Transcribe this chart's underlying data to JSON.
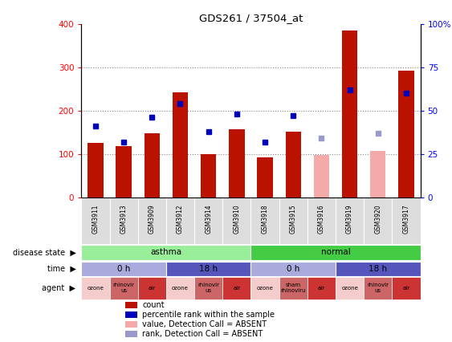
{
  "title": "GDS261 / 37504_at",
  "samples": [
    "GSM3911",
    "GSM3913",
    "GSM3909",
    "GSM3912",
    "GSM3914",
    "GSM3910",
    "GSM3918",
    "GSM3915",
    "GSM3916",
    "GSM3919",
    "GSM3920",
    "GSM3917"
  ],
  "counts": [
    125,
    118,
    148,
    242,
    100,
    157,
    92,
    152,
    null,
    385,
    null,
    293
  ],
  "counts_absent": [
    null,
    null,
    null,
    null,
    null,
    null,
    null,
    null,
    98,
    null,
    108,
    null
  ],
  "ranks": [
    41,
    32,
    46,
    54,
    38,
    48,
    32,
    47,
    null,
    62,
    null,
    60
  ],
  "ranks_absent": [
    null,
    null,
    null,
    null,
    null,
    null,
    null,
    null,
    34,
    null,
    37,
    null
  ],
  "ylim_left": [
    0,
    400
  ],
  "ylim_right": [
    0,
    100
  ],
  "yticks_left": [
    0,
    100,
    200,
    300,
    400
  ],
  "ytick_labels_right": [
    "0",
    "25",
    "50",
    "75",
    "100%"
  ],
  "bar_color": "#bb1100",
  "bar_color_absent": "#f5aaaa",
  "rank_color": "#0000bb",
  "rank_color_absent": "#9999cc",
  "disease_state_blocks": [
    {
      "label": "asthma",
      "start": 0,
      "end": 6,
      "color": "#99ee99"
    },
    {
      "label": "normal",
      "start": 6,
      "end": 12,
      "color": "#44cc44"
    }
  ],
  "time_blocks": [
    {
      "label": "0 h",
      "start": 0,
      "end": 3,
      "color": "#aaaadd"
    },
    {
      "label": "18 h",
      "start": 3,
      "end": 6,
      "color": "#5555bb"
    },
    {
      "label": "0 h",
      "start": 6,
      "end": 9,
      "color": "#aaaadd"
    },
    {
      "label": "18 h",
      "start": 9,
      "end": 12,
      "color": "#5555bb"
    }
  ],
  "agents": [
    {
      "label": "ozone",
      "color": "#f5cccc"
    },
    {
      "label": "rhinovir\nus",
      "color": "#cc6666"
    },
    {
      "label": "air",
      "color": "#cc3333"
    },
    {
      "label": "ozone",
      "color": "#f5cccc"
    },
    {
      "label": "rhinovir\nus",
      "color": "#cc6666"
    },
    {
      "label": "air",
      "color": "#cc3333"
    },
    {
      "label": "ozone",
      "color": "#f5cccc"
    },
    {
      "label": "sham\nrhinoviru",
      "color": "#cc6666"
    },
    {
      "label": "air",
      "color": "#cc3333"
    },
    {
      "label": "ozone",
      "color": "#f5cccc"
    },
    {
      "label": "rhinovir\nus",
      "color": "#cc6666"
    },
    {
      "label": "air",
      "color": "#cc3333"
    }
  ],
  "legend": [
    {
      "label": "count",
      "color": "#bb1100"
    },
    {
      "label": "percentile rank within the sample",
      "color": "#0000bb"
    },
    {
      "label": "value, Detection Call = ABSENT",
      "color": "#f5aaaa"
    },
    {
      "label": "rank, Detection Call = ABSENT",
      "color": "#9999cc"
    }
  ],
  "row_labels": [
    "disease state",
    "time",
    "agent"
  ],
  "grid_color": "#888888",
  "grid_yticks": [
    100,
    200,
    300
  ]
}
